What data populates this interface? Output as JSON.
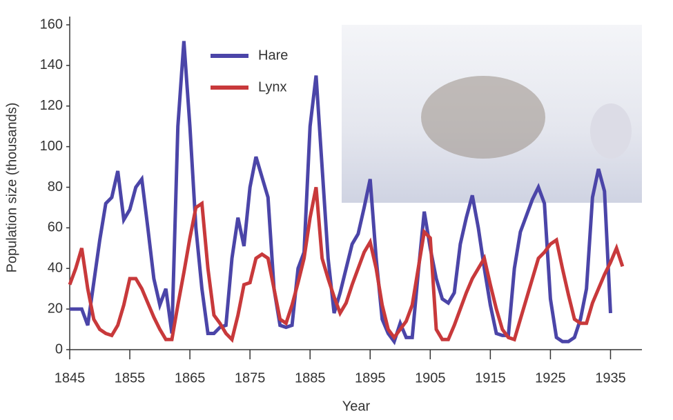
{
  "chart_data": {
    "type": "line",
    "xlabel": "Year",
    "ylabel": "Population size (thousands)",
    "x": [
      1845,
      1846,
      1847,
      1848,
      1849,
      1850,
      1851,
      1852,
      1853,
      1854,
      1855,
      1856,
      1857,
      1858,
      1859,
      1860,
      1861,
      1862,
      1863,
      1864,
      1865,
      1866,
      1867,
      1868,
      1869,
      1870,
      1871,
      1872,
      1873,
      1874,
      1875,
      1876,
      1877,
      1878,
      1879,
      1880,
      1881,
      1882,
      1883,
      1884,
      1885,
      1886,
      1887,
      1888,
      1889,
      1890,
      1891,
      1892,
      1893,
      1894,
      1895,
      1896,
      1897,
      1898,
      1899,
      1900,
      1901,
      1902,
      1903,
      1904,
      1905,
      1906,
      1907,
      1908,
      1909,
      1910,
      1911,
      1912,
      1913,
      1914,
      1915,
      1916,
      1917,
      1918,
      1919,
      1920,
      1921,
      1922,
      1923,
      1924,
      1925,
      1926,
      1927,
      1928,
      1929,
      1930,
      1931,
      1932,
      1933,
      1934,
      1935,
      1936,
      1937
    ],
    "series": [
      {
        "name": "Hare",
        "color": "#4b45a8",
        "values": [
          20,
          20,
          20,
          12,
          33,
          54,
          72,
          75,
          88,
          64,
          69,
          80,
          84,
          60,
          35,
          22,
          30,
          8,
          110,
          152,
          110,
          60,
          30,
          8,
          8,
          11,
          12,
          45,
          65,
          51,
          80,
          95,
          85,
          75,
          30,
          12,
          11,
          12,
          40,
          48,
          110,
          135,
          90,
          45,
          18,
          28,
          40,
          52,
          57,
          70,
          84,
          45,
          15,
          8,
          4,
          13,
          6,
          6,
          38,
          68,
          50,
          35,
          25,
          23,
          28,
          52,
          65,
          76,
          60,
          40,
          22,
          8,
          7,
          7,
          40,
          58,
          66,
          74,
          80,
          72,
          25,
          6,
          4,
          4,
          6,
          15,
          30,
          75,
          89,
          78,
          18,
          null,
          null
        ]
      },
      {
        "name": "Lynx",
        "color": "#c8393b",
        "values": [
          32,
          40,
          50,
          30,
          15,
          10,
          8,
          7,
          12,
          22,
          35,
          35,
          30,
          23,
          16,
          10,
          5,
          5,
          22,
          38,
          55,
          70,
          72,
          40,
          17,
          13,
          8,
          5,
          17,
          32,
          33,
          45,
          47,
          45,
          30,
          15,
          13,
          22,
          33,
          45,
          65,
          80,
          45,
          35,
          26,
          18,
          23,
          32,
          40,
          48,
          53,
          40,
          22,
          10,
          6,
          10,
          14,
          22,
          40,
          58,
          55,
          10,
          5,
          5,
          12,
          20,
          28,
          35,
          40,
          45,
          32,
          20,
          10,
          6,
          5,
          15,
          25,
          35,
          45,
          48,
          52,
          54,
          40,
          27,
          15,
          13,
          13,
          23,
          30,
          37,
          43,
          50,
          41
        ]
      }
    ],
    "xlim": [
      1845,
      1940
    ],
    "xticks": [
      1845,
      1855,
      1865,
      1875,
      1885,
      1895,
      1905,
      1915,
      1925,
      1935
    ],
    "ylim": [
      0,
      160
    ],
    "yticks": [
      0,
      20,
      40,
      60,
      80,
      100,
      120,
      140,
      160
    ],
    "grid": false,
    "legend": "top"
  }
}
